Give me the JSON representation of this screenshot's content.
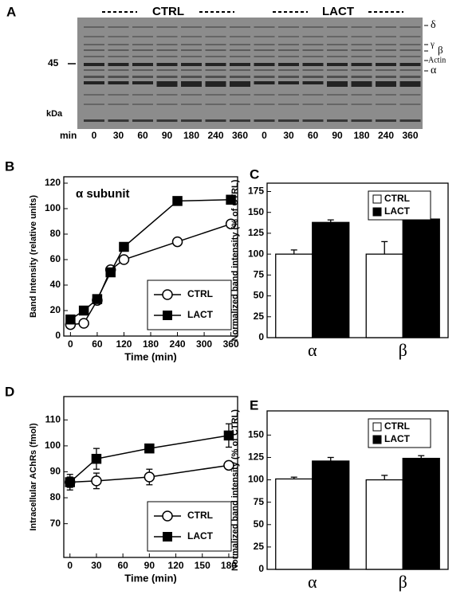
{
  "gel": {
    "label": "A",
    "groups": [
      "CTRL",
      "LACT"
    ],
    "marker": "45",
    "unit": "kDa",
    "time_label": "min",
    "lanes": [
      "0",
      "30",
      "60",
      "90",
      "180",
      "240",
      "360",
      "0",
      "30",
      "60",
      "90",
      "180",
      "240",
      "360"
    ],
    "bands": [
      "δ",
      "γ",
      "β",
      "Actin",
      "α"
    ]
  },
  "chart_data": [
    {
      "type": "line",
      "label": "B",
      "annotation": "α subunit",
      "xlabel": "Time (min)",
      "ylabel": "Band Intensity (relative units)",
      "xlim": [
        -15,
        375
      ],
      "xticks": [
        0,
        60,
        120,
        180,
        240,
        300,
        360
      ],
      "ylim": [
        0,
        125
      ],
      "yticks": [
        0,
        20,
        40,
        60,
        80,
        100,
        120
      ],
      "legend": "lower right",
      "series": [
        {
          "name": "CTRL",
          "color": "#ffffff",
          "marker": "circle",
          "x": [
            0,
            30,
            60,
            90,
            120,
            240,
            360
          ],
          "values": [
            9,
            10,
            28,
            52,
            60,
            74,
            88
          ]
        },
        {
          "name": "LACT",
          "color": "#000000",
          "marker": "square",
          "x": [
            0,
            30,
            60,
            90,
            120,
            240,
            360
          ],
          "values": [
            13,
            20,
            29,
            50,
            70,
            106,
            107
          ]
        }
      ]
    },
    {
      "type": "bar",
      "label": "C",
      "ylabel": "Normalized band intensity (% of CTRL)",
      "categories": [
        "α",
        "β"
      ],
      "ylim": [
        0,
        185
      ],
      "yticks": [
        0,
        25,
        50,
        75,
        100,
        125,
        150,
        175
      ],
      "legend": "upper right",
      "series": [
        {
          "name": "CTRL",
          "color": "#ffffff",
          "values": [
            100,
            100
          ],
          "errors": [
            5,
            15
          ]
        },
        {
          "name": "LACT",
          "color": "#000000",
          "values": [
            138,
            142
          ],
          "errors": [
            3,
            12
          ]
        }
      ]
    },
    {
      "type": "line",
      "label": "D",
      "xlabel": "Time (min)",
      "ylabel": "Intracellular AChRs (fmol)",
      "xlim": [
        -7,
        190
      ],
      "xticks": [
        0,
        30,
        60,
        90,
        120,
        150,
        180
      ],
      "ylim": [
        57,
        119
      ],
      "yticks": [
        70,
        80,
        90,
        100,
        110
      ],
      "legend": "lower right",
      "series": [
        {
          "name": "CTRL",
          "color": "#ffffff",
          "marker": "circle",
          "x": [
            0,
            30,
            90,
            180
          ],
          "values": [
            86,
            86.5,
            88,
            92.5
          ],
          "errors": [
            2,
            3,
            3,
            1.5
          ]
        },
        {
          "name": "LACT",
          "color": "#000000",
          "marker": "square",
          "x": [
            0,
            30,
            90,
            180
          ],
          "values": [
            86,
            95,
            99,
            104
          ],
          "errors": [
            3,
            4,
            1.5,
            4.5
          ]
        }
      ]
    },
    {
      "type": "bar",
      "label": "E",
      "ylabel": "Normalized band intensity (% of CTRL)",
      "categories": [
        "α",
        "β"
      ],
      "ylim": [
        0,
        177
      ],
      "yticks": [
        0,
        25,
        50,
        75,
        100,
        125,
        150
      ],
      "legend": "upper right",
      "series": [
        {
          "name": "CTRL",
          "color": "#ffffff",
          "values": [
            101,
            100
          ],
          "errors": [
            2,
            5
          ]
        },
        {
          "name": "LACT",
          "color": "#000000",
          "values": [
            121,
            124
          ],
          "errors": [
            4,
            3
          ]
        }
      ]
    }
  ]
}
